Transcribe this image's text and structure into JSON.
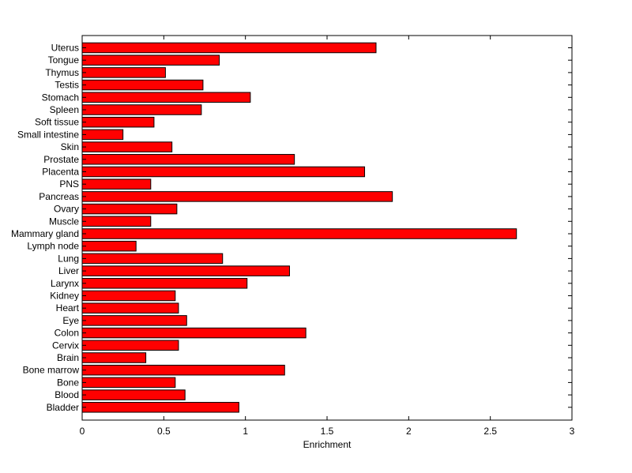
{
  "chart_data": {
    "type": "bar",
    "orientation": "horizontal",
    "title": "",
    "xlabel": "Enrichment",
    "ylabel": "",
    "xlim": [
      0,
      3
    ],
    "xticks": [
      0,
      0.5,
      1,
      1.5,
      2,
      2.5,
      3
    ],
    "xtick_labels": [
      "0",
      "0.5",
      "1",
      "1.5",
      "2",
      "2.5",
      "3"
    ],
    "grid": false,
    "legend": "none",
    "bar_color": "#ff0000",
    "bar_edge_color": "#000000",
    "categories": [
      "Uterus",
      "Tongue",
      "Thymus",
      "Testis",
      "Stomach",
      "Spleen",
      "Soft tissue",
      "Small intestine",
      "Skin",
      "Prostate",
      "Placenta",
      "PNS",
      "Pancreas",
      "Ovary",
      "Muscle",
      "Mammary gland",
      "Lymph node",
      "Lung",
      "Liver",
      "Larynx",
      "Kidney",
      "Heart",
      "Eye",
      "Colon",
      "Cervix",
      "Brain",
      "Bone marrow",
      "Bone",
      "Blood",
      "Bladder"
    ],
    "values": [
      1.8,
      0.84,
      0.51,
      0.74,
      1.03,
      0.73,
      0.44,
      0.25,
      0.55,
      1.3,
      1.73,
      0.42,
      1.9,
      0.58,
      0.42,
      2.66,
      0.33,
      0.86,
      1.27,
      1.01,
      0.57,
      0.59,
      0.64,
      1.37,
      0.59,
      0.39,
      1.24,
      0.57,
      0.63,
      0.96
    ]
  }
}
